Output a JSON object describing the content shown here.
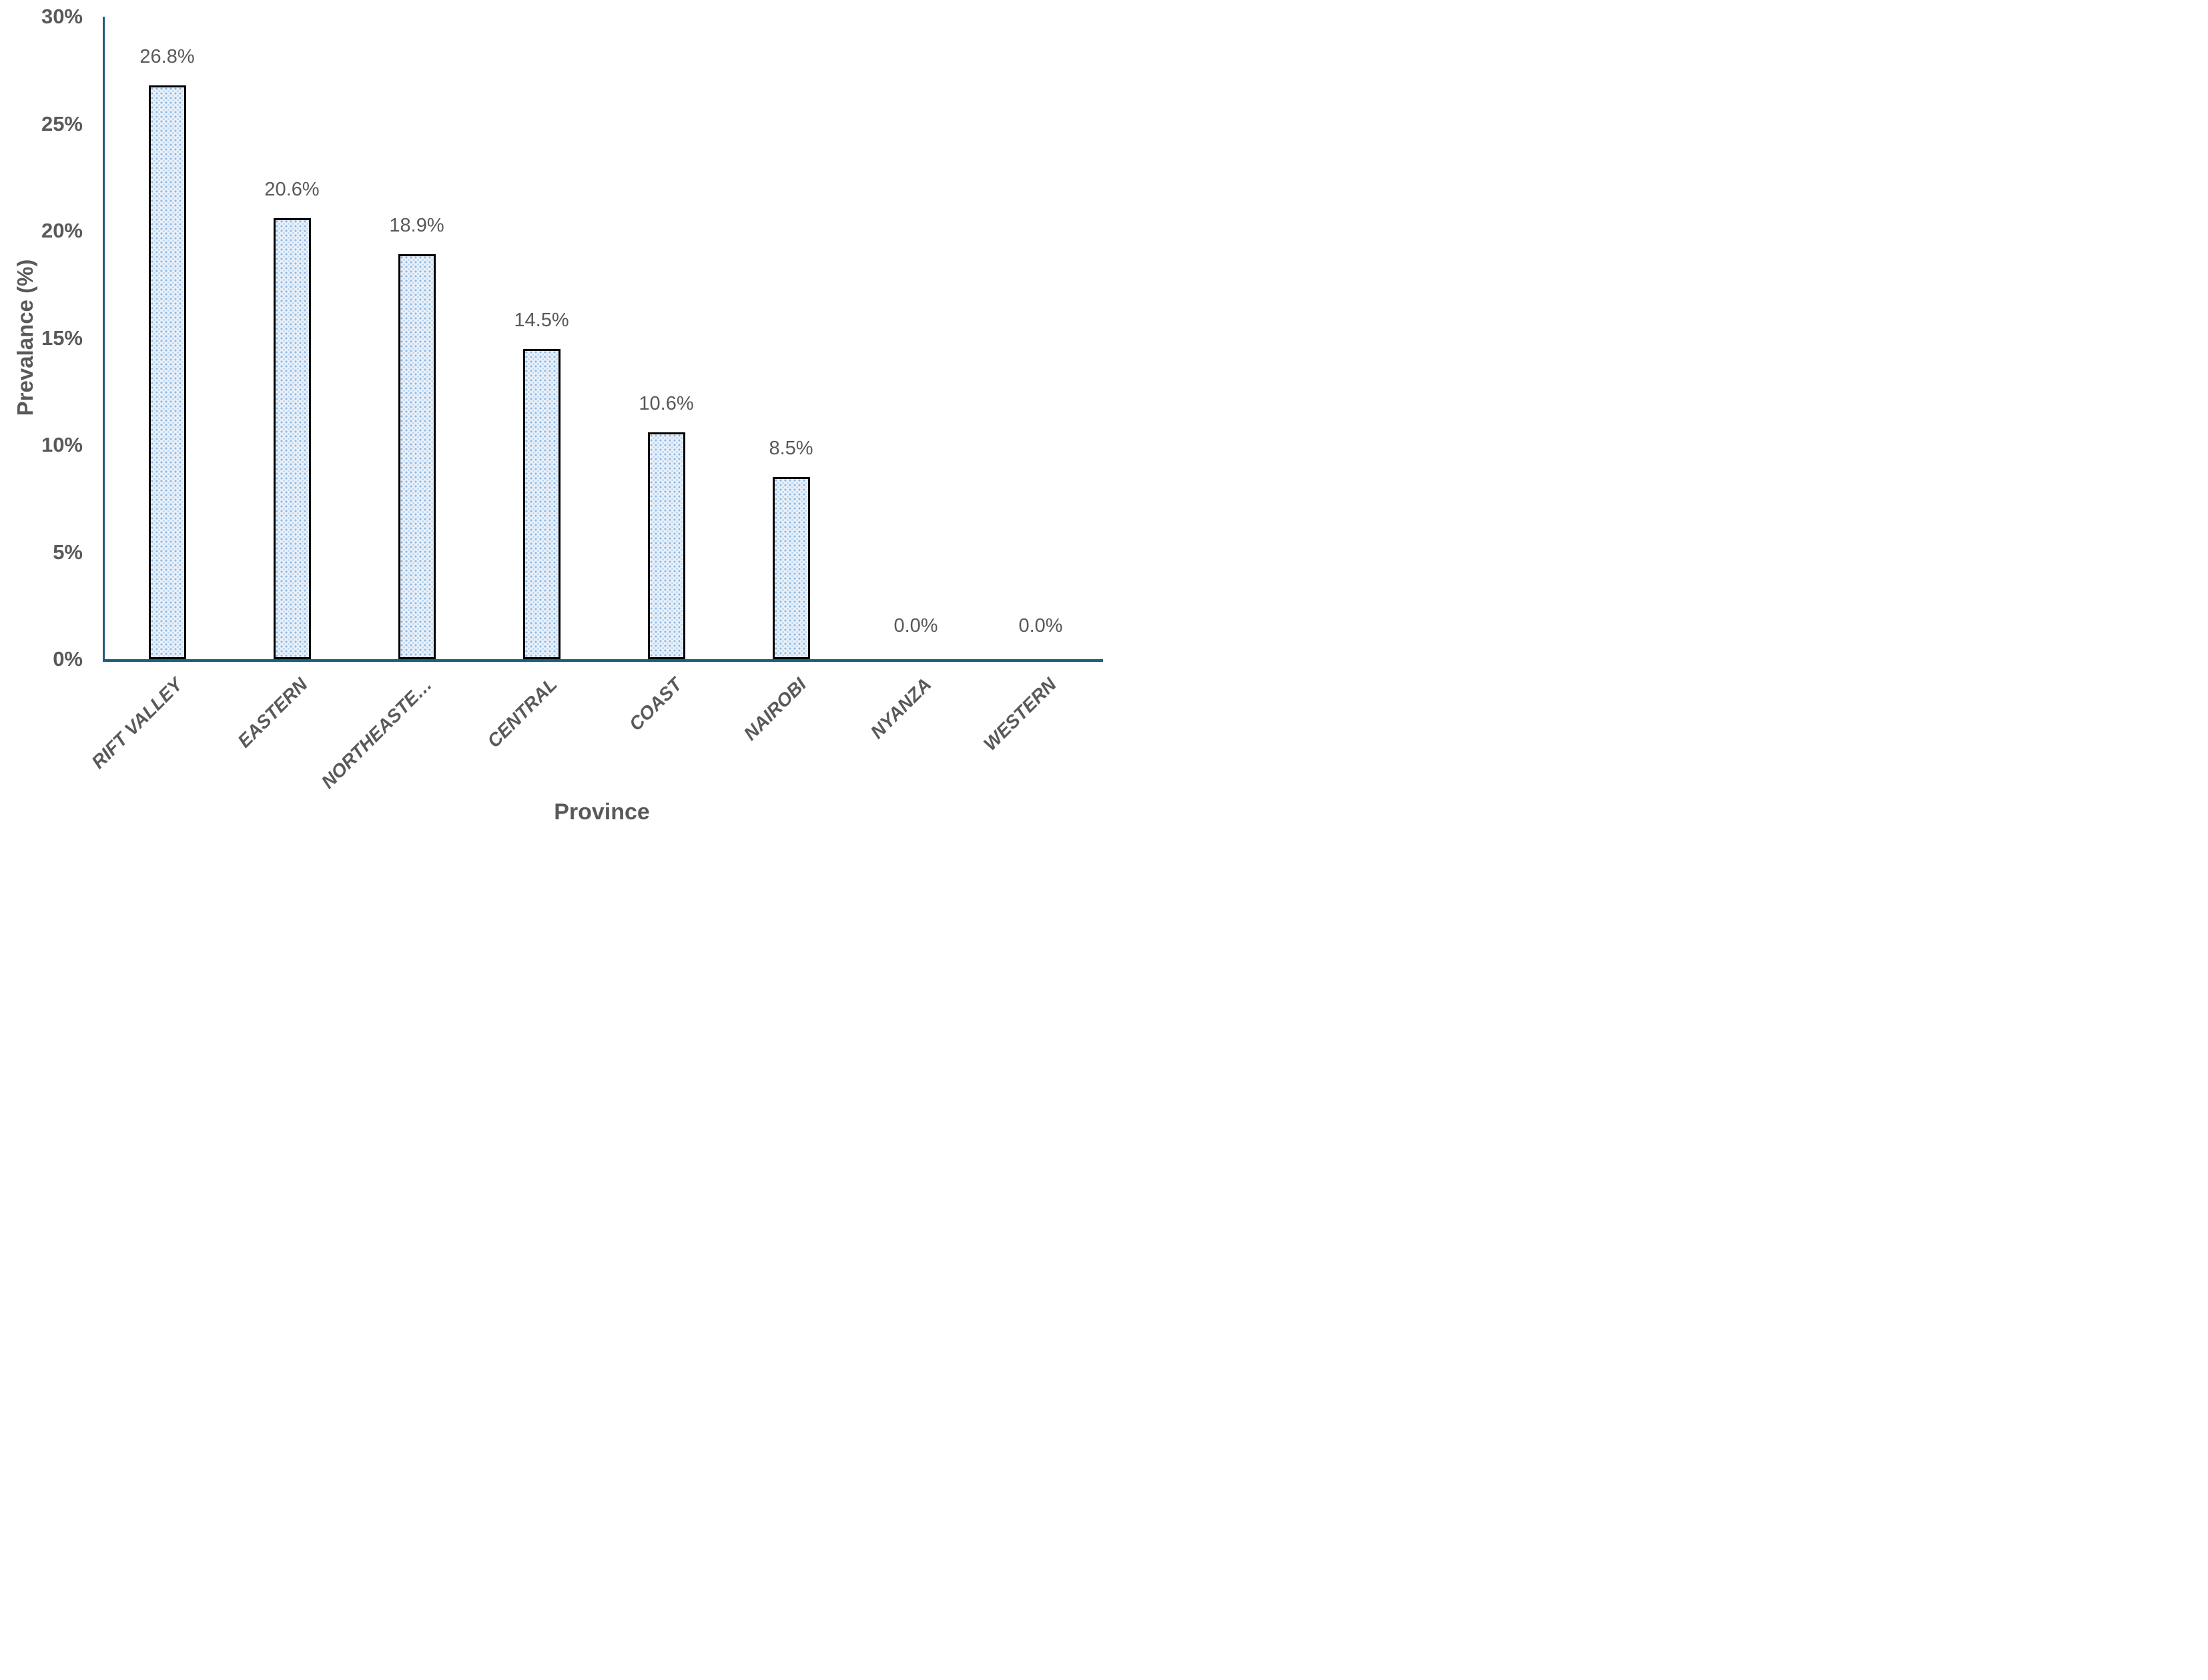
{
  "chart_data": {
    "type": "bar",
    "title": "",
    "xlabel": "Province",
    "ylabel": "Prevalance (%)",
    "categories": [
      "RIFT VALLEY",
      "EASTERN",
      "NORTHEASTE…",
      "CENTRAL",
      "COAST",
      "NAIROBI",
      "NYANZA",
      "WESTERN"
    ],
    "values": [
      26.8,
      20.6,
      18.9,
      14.5,
      10.6,
      8.5,
      0.0,
      0.0
    ],
    "data_labels": [
      "26.8%",
      "20.6%",
      "18.9%",
      "14.5%",
      "10.6%",
      "8.5%",
      "0.0%",
      "0.0%"
    ],
    "ylim": [
      0,
      30
    ],
    "ytick_values": [
      30,
      25,
      20,
      15,
      10,
      5,
      0
    ],
    "ytick_labels": [
      "30%",
      "25%",
      "20%",
      "15%",
      "10%",
      "5%",
      "0%"
    ],
    "grid": false,
    "legend": "none",
    "bar_pattern": "dotted-light-blue",
    "colors": {
      "axis": "#1e5e7d",
      "text": "#595959",
      "bar_fill": "#bdd7ee",
      "bar_pattern_dot": "#8fb9e3",
      "bar_border": "#000000"
    }
  }
}
